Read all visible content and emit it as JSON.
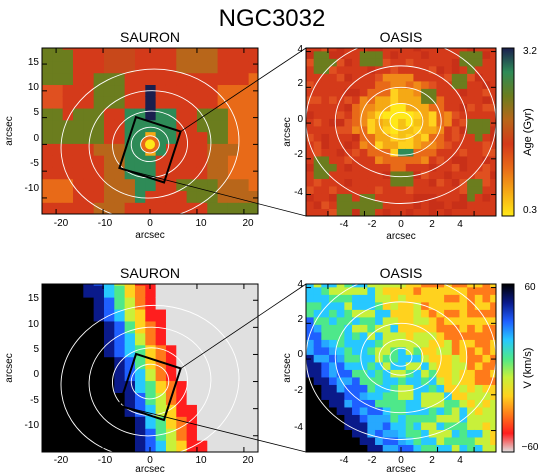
{
  "figure_title": "NGC3032",
  "colors": {
    "age_ramp": [
      "#1a1f4e",
      "#2e8b57",
      "#6b7d1e",
      "#b8661a",
      "#d43a1a",
      "#e86a18",
      "#f5a915",
      "#ffe818"
    ],
    "velocity_ramp": [
      "#000000",
      "#0a1a8a",
      "#1f5fff",
      "#27c8ff",
      "#4ee88a",
      "#c8f03a",
      "#ffd21e",
      "#ff7a1a",
      "#ff1e1e",
      "#e0e0e0"
    ],
    "contour": "#ffffff",
    "box": "#000000"
  },
  "chart_data": [
    {
      "type": "heatmap",
      "title": "SAURON",
      "xlabel": "arcsec",
      "ylabel": "arcsec",
      "xlim": [
        -23,
        23
      ],
      "ylim": [
        -13,
        18
      ],
      "xticks": [
        "-20",
        "-10",
        "0",
        "10",
        "20"
      ],
      "yticks": [
        "-10",
        "-5",
        "0",
        "5",
        "10",
        "15"
      ],
      "quantity": "Age (Gyr)",
      "zoom_box": {
        "center": [
          0,
          -1
        ],
        "half_width": 5,
        "rotation_deg": 18
      }
    },
    {
      "type": "heatmap",
      "title": "OASIS",
      "xlabel": "arcsec",
      "ylabel": "arcsec",
      "xlim": [
        -5.2,
        5.2
      ],
      "ylim": [
        -5.2,
        4.2
      ],
      "xticks": [
        "-4",
        "-2",
        "0",
        "2",
        "4"
      ],
      "yticks": [
        "-4",
        "-2",
        "0",
        "2",
        "4"
      ],
      "colorbar": {
        "label": "Age (Gyr)",
        "min": 0.3,
        "max": 3.2,
        "min_label": "0.3",
        "max_label": "3.2"
      }
    },
    {
      "type": "heatmap",
      "title": "SAURON",
      "xlabel": "arcsec",
      "ylabel": "arcsec",
      "xlim": [
        -23,
        23
      ],
      "ylim": [
        -13,
        18
      ],
      "xticks": [
        "-20",
        "-10",
        "0",
        "10",
        "20"
      ],
      "yticks": [
        "-10",
        "-5",
        "0",
        "5",
        "10",
        "15"
      ],
      "quantity": "V (km/s)",
      "zoom_box": {
        "center": [
          0,
          -1
        ],
        "half_width": 5,
        "rotation_deg": 18
      }
    },
    {
      "type": "heatmap",
      "title": "OASIS",
      "xlabel": "arcsec",
      "ylabel": "arcsec",
      "xlim": [
        -5.2,
        5.2
      ],
      "ylim": [
        -5.2,
        4.2
      ],
      "xticks": [
        "-4",
        "-2",
        "0",
        "2",
        "4"
      ],
      "yticks": [
        "-4",
        "-2",
        "0",
        "2",
        "4"
      ],
      "colorbar": {
        "label": "V (km/s)",
        "min": -60,
        "max": 60,
        "min_label": "−60",
        "max_label": "60"
      }
    }
  ]
}
